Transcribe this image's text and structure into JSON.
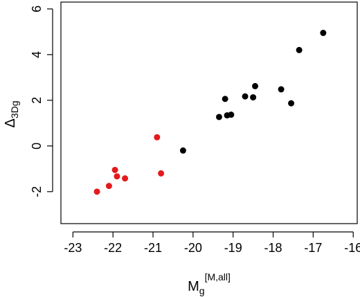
{
  "chart_data": {
    "type": "scatter",
    "title": "",
    "xlabel": {
      "base": "M",
      "sub": "g",
      "sup": "[M,all]"
    },
    "ylabel": {
      "base": "Δ",
      "sub": "3Dg"
    },
    "xlim": [
      -23.3,
      -15.9
    ],
    "ylim": [
      -3.4,
      6.3
    ],
    "xticks": [
      -23,
      -22,
      -21,
      -20,
      -19,
      -18,
      -17,
      -16
    ],
    "yticks": [
      -2,
      0,
      2,
      4,
      6
    ],
    "grid": false,
    "legend": "none",
    "series": [
      {
        "color": "#e31a1c",
        "points": [
          {
            "x": -22.4,
            "y": -2.0
          },
          {
            "x": -22.1,
            "y": -1.75
          },
          {
            "x": -21.95,
            "y": -1.05
          },
          {
            "x": -21.9,
            "y": -1.33
          },
          {
            "x": -21.7,
            "y": -1.42
          },
          {
            "x": -20.9,
            "y": 0.38
          },
          {
            "x": -20.8,
            "y": -1.2
          }
        ]
      },
      {
        "color": "#000000",
        "points": [
          {
            "x": -20.25,
            "y": -0.2
          },
          {
            "x": -19.35,
            "y": 1.27
          },
          {
            "x": -19.2,
            "y": 2.06
          },
          {
            "x": -19.15,
            "y": 1.34
          },
          {
            "x": -19.05,
            "y": 1.37
          },
          {
            "x": -18.7,
            "y": 2.17
          },
          {
            "x": -18.5,
            "y": 2.13
          },
          {
            "x": -18.45,
            "y": 2.62
          },
          {
            "x": -17.8,
            "y": 2.48
          },
          {
            "x": -17.55,
            "y": 1.87
          },
          {
            "x": -17.35,
            "y": 4.2
          },
          {
            "x": -16.75,
            "y": 4.95
          }
        ]
      }
    ]
  }
}
